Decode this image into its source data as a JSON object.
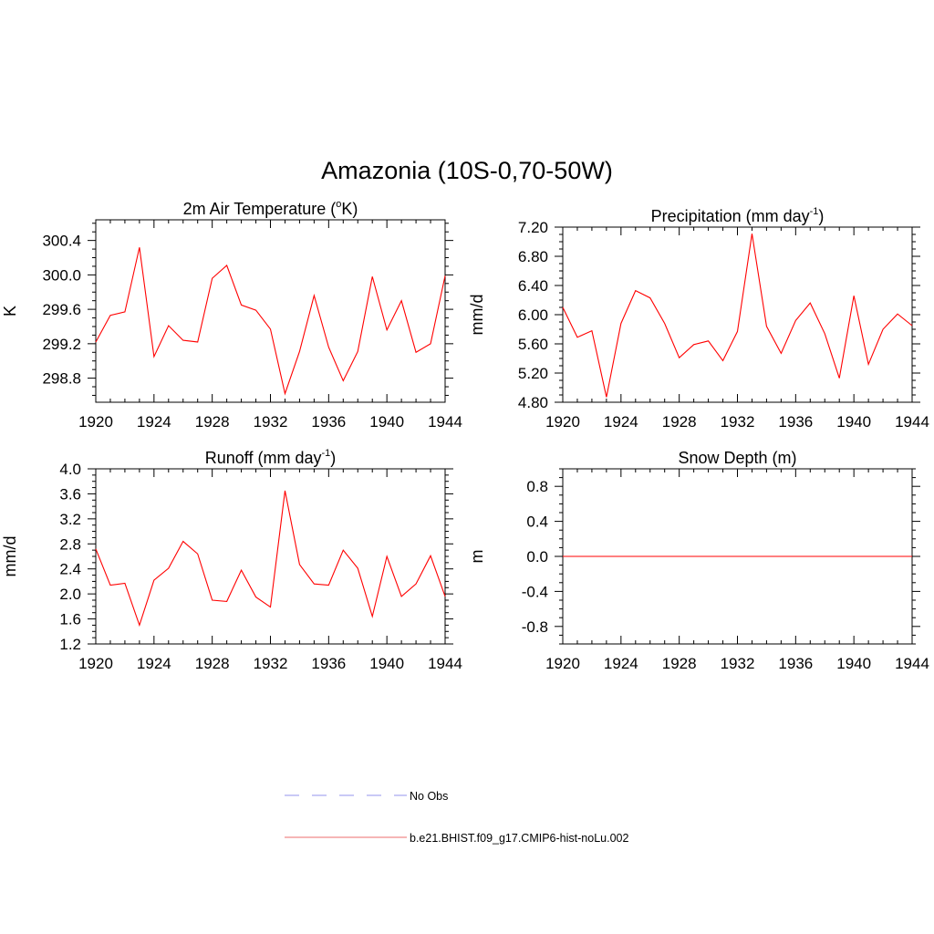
{
  "main_title": "Amazonia (10S-0,70-50W)",
  "legend": {
    "items": [
      {
        "label": "No Obs",
        "color": "#a9a9f0",
        "style": "dashed"
      },
      {
        "label": "b.e21.BHIST.f09_g17.CMIP6-hist-noLu.002",
        "color": "#f08a8a",
        "style": "solid"
      }
    ]
  },
  "chart_data": [
    {
      "type": "line",
      "title": "2m Air Temperature (",
      "title_sup": "o",
      "title_after": "K)",
      "ylabel": "K",
      "xlim": [
        1920,
        1944
      ],
      "ylim": [
        298.52,
        300.64
      ],
      "xticks": [
        1920,
        1924,
        1928,
        1932,
        1936,
        1940,
        1944
      ],
      "yticks": [
        298.8,
        299.2,
        299.6,
        300.0,
        300.4
      ],
      "ytick_labels": [
        "298.8",
        "299.2",
        "299.6",
        "300.0",
        "300.4"
      ],
      "x": [
        1920,
        1921,
        1922,
        1923,
        1924,
        1925,
        1926,
        1927,
        1928,
        1929,
        1930,
        1931,
        1932,
        1933,
        1934,
        1935,
        1936,
        1937,
        1938,
        1939,
        1940,
        1941,
        1942,
        1943,
        1944
      ],
      "series": [
        {
          "color": "#ff0000",
          "values": [
            299.22,
            299.53,
            299.57,
            300.32,
            299.05,
            299.41,
            299.24,
            299.22,
            299.96,
            300.11,
            299.65,
            299.59,
            299.37,
            298.62,
            299.11,
            299.76,
            299.16,
            298.77,
            299.11,
            299.98,
            299.36,
            299.7,
            299.1,
            299.2,
            299.99
          ]
        }
      ],
      "grid": false
    },
    {
      "type": "line",
      "title": "Precipitation (mm day",
      "title_sup": "-1",
      "title_after": ")",
      "ylabel": "mm/d",
      "xlim": [
        1920,
        1944
      ],
      "ylim": [
        4.8,
        7.2
      ],
      "xticks": [
        1920,
        1924,
        1928,
        1932,
        1936,
        1940,
        1944
      ],
      "yticks": [
        4.8,
        5.2,
        5.6,
        6.0,
        6.4,
        6.8,
        7.2
      ],
      "ytick_labels": [
        "4.80",
        "5.20",
        "5.60",
        "6.00",
        "6.40",
        "6.80",
        "7.20"
      ],
      "x": [
        1920,
        1921,
        1922,
        1923,
        1924,
        1925,
        1926,
        1927,
        1928,
        1929,
        1930,
        1931,
        1932,
        1933,
        1934,
        1935,
        1936,
        1937,
        1938,
        1939,
        1940,
        1941,
        1942,
        1943,
        1944
      ],
      "series": [
        {
          "color": "#ff0000",
          "values": [
            6.1,
            5.69,
            5.78,
            4.87,
            5.88,
            6.33,
            6.23,
            5.88,
            5.41,
            5.59,
            5.64,
            5.37,
            5.77,
            7.11,
            5.84,
            5.47,
            5.92,
            6.16,
            5.74,
            5.13,
            6.26,
            5.32,
            5.8,
            6.01,
            5.85
          ]
        }
      ],
      "grid": false
    },
    {
      "type": "line",
      "title": "Runoff (mm day",
      "title_sup": "-1",
      "title_after": ")",
      "ylabel": "mm/d",
      "xlim": [
        1920,
        1944
      ],
      "ylim": [
        1.2,
        4.0
      ],
      "xticks": [
        1920,
        1924,
        1928,
        1932,
        1936,
        1940,
        1944
      ],
      "yticks": [
        1.2,
        1.6,
        2.0,
        2.4,
        2.8,
        3.2,
        3.6,
        4.0
      ],
      "ytick_labels": [
        "1.2",
        "1.6",
        "2.0",
        "2.4",
        "2.8",
        "3.2",
        "3.6",
        "4.0"
      ],
      "x": [
        1920,
        1921,
        1922,
        1923,
        1924,
        1925,
        1926,
        1927,
        1928,
        1929,
        1930,
        1931,
        1932,
        1933,
        1934,
        1935,
        1936,
        1937,
        1938,
        1939,
        1940,
        1941,
        1942,
        1943,
        1944
      ],
      "series": [
        {
          "color": "#ff0000",
          "values": [
            2.72,
            2.14,
            2.17,
            1.5,
            2.22,
            2.41,
            2.84,
            2.64,
            1.9,
            1.88,
            2.38,
            1.95,
            1.79,
            3.65,
            2.47,
            2.16,
            2.14,
            2.7,
            2.41,
            1.64,
            2.6,
            1.96,
            2.16,
            2.61,
            1.96
          ]
        }
      ],
      "grid": false
    },
    {
      "type": "line",
      "title": "Snow Depth (m)",
      "title_sup": "",
      "title_after": "",
      "ylabel": "m",
      "xlim": [
        1920,
        1944
      ],
      "ylim": [
        -1.0,
        1.0
      ],
      "xticks": [
        1920,
        1924,
        1928,
        1932,
        1936,
        1940,
        1944
      ],
      "yticks": [
        -0.8,
        -0.4,
        0.0,
        0.4,
        0.8
      ],
      "ytick_labels": [
        "-0.8",
        "-0.4",
        "0.0",
        "0.4",
        "0.8"
      ],
      "x": [
        1920,
        1921,
        1922,
        1923,
        1924,
        1925,
        1926,
        1927,
        1928,
        1929,
        1930,
        1931,
        1932,
        1933,
        1934,
        1935,
        1936,
        1937,
        1938,
        1939,
        1940,
        1941,
        1942,
        1943,
        1944
      ],
      "series": [
        {
          "color": "#ff0000",
          "values": [
            0,
            0,
            0,
            0,
            0,
            0,
            0,
            0,
            0,
            0,
            0,
            0,
            0,
            0,
            0,
            0,
            0,
            0,
            0,
            0,
            0,
            0,
            0,
            0,
            0
          ]
        }
      ],
      "grid": false
    }
  ]
}
